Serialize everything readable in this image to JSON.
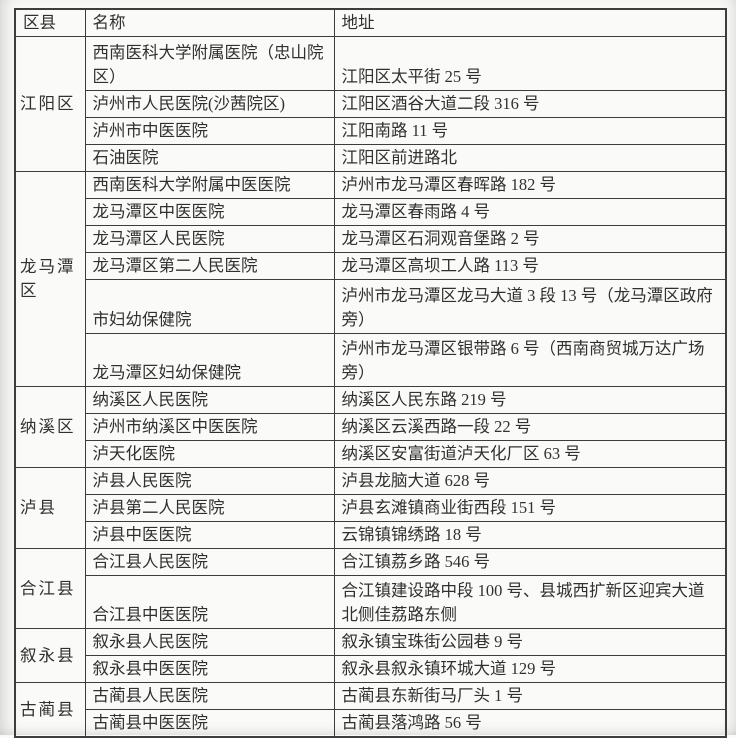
{
  "colors": {
    "paper": "#fafaf8",
    "ink": "#303030",
    "border": "#3d3d3d"
  },
  "table": {
    "headers": {
      "district": "区县",
      "name": "名称",
      "address": "地址"
    },
    "groups": [
      {
        "district": "江阳区",
        "hospitals": [
          {
            "name": "西南医科大学附属医院（忠山院区）",
            "address": "江阳区太平街 25 号"
          },
          {
            "name": "泸州市人民医院(沙茜院区)",
            "address": "江阳区酒谷大道二段 316 号"
          },
          {
            "name": "泸州市中医医院",
            "address": "江阳南路 11 号"
          },
          {
            "name": "石油医院",
            "address": "江阳区前进路北"
          }
        ]
      },
      {
        "district": "龙马潭区",
        "hospitals": [
          {
            "name": "西南医科大学附属中医医院",
            "address": "泸州市龙马潭区春晖路 182 号"
          },
          {
            "name": "龙马潭区中医医院",
            "address": "龙马潭区春雨路 4 号"
          },
          {
            "name": "龙马潭区人民医院",
            "address": "龙马潭区石洞观音堡路 2 号"
          },
          {
            "name": "龙马潭区第二人民医院",
            "address": "龙马潭区高坝工人路 113 号"
          },
          {
            "name": "市妇幼保健院",
            "address": "泸州市龙马潭区龙马大道 3 段 13 号（龙马潭区政府旁）"
          },
          {
            "name": "龙马潭区妇幼保健院",
            "address": "泸州市龙马潭区银带路 6 号（西南商贸城万达广场旁）"
          }
        ]
      },
      {
        "district": "纳溪区",
        "hospitals": [
          {
            "name": "纳溪区人民医院",
            "address": "纳溪区人民东路 219 号"
          },
          {
            "name": "泸州市纳溪区中医医院",
            "address": "纳溪区云溪西路一段 22 号"
          },
          {
            "name": "泸天化医院",
            "address": "纳溪区安富街道泸天化厂区 63 号"
          }
        ]
      },
      {
        "district": "泸县",
        "hospitals": [
          {
            "name": "泸县人民医院",
            "address": "泸县龙脑大道 628 号"
          },
          {
            "name": "泸县第二人民医院",
            "address": "泸县玄滩镇商业街西段 151 号"
          },
          {
            "name": "泸县中医医院",
            "address": "云锦镇锦绣路 18 号"
          }
        ]
      },
      {
        "district": "合江县",
        "hospitals": [
          {
            "name": "合江县人民医院",
            "address": "合江镇荔乡路 546 号"
          },
          {
            "name": "合江县中医医院",
            "address": "合江镇建设路中段 100 号、县城西扩新区迎宾大道北侧佳荔路东侧"
          }
        ]
      },
      {
        "district": "叙永县",
        "hospitals": [
          {
            "name": "叙永县人民医院",
            "address": "叙永镇宝珠街公园巷 9 号"
          },
          {
            "name": "叙永县中医医院",
            "address": "叙永县叙永镇环城大道 129 号"
          }
        ]
      },
      {
        "district": "古蔺县",
        "hospitals": [
          {
            "name": "古蔺县人民医院",
            "address": "古蔺县东新街马厂头 1 号"
          },
          {
            "name": "古蔺县中医医院",
            "address": "古蔺县落鸿路 56 号"
          }
        ]
      }
    ]
  }
}
